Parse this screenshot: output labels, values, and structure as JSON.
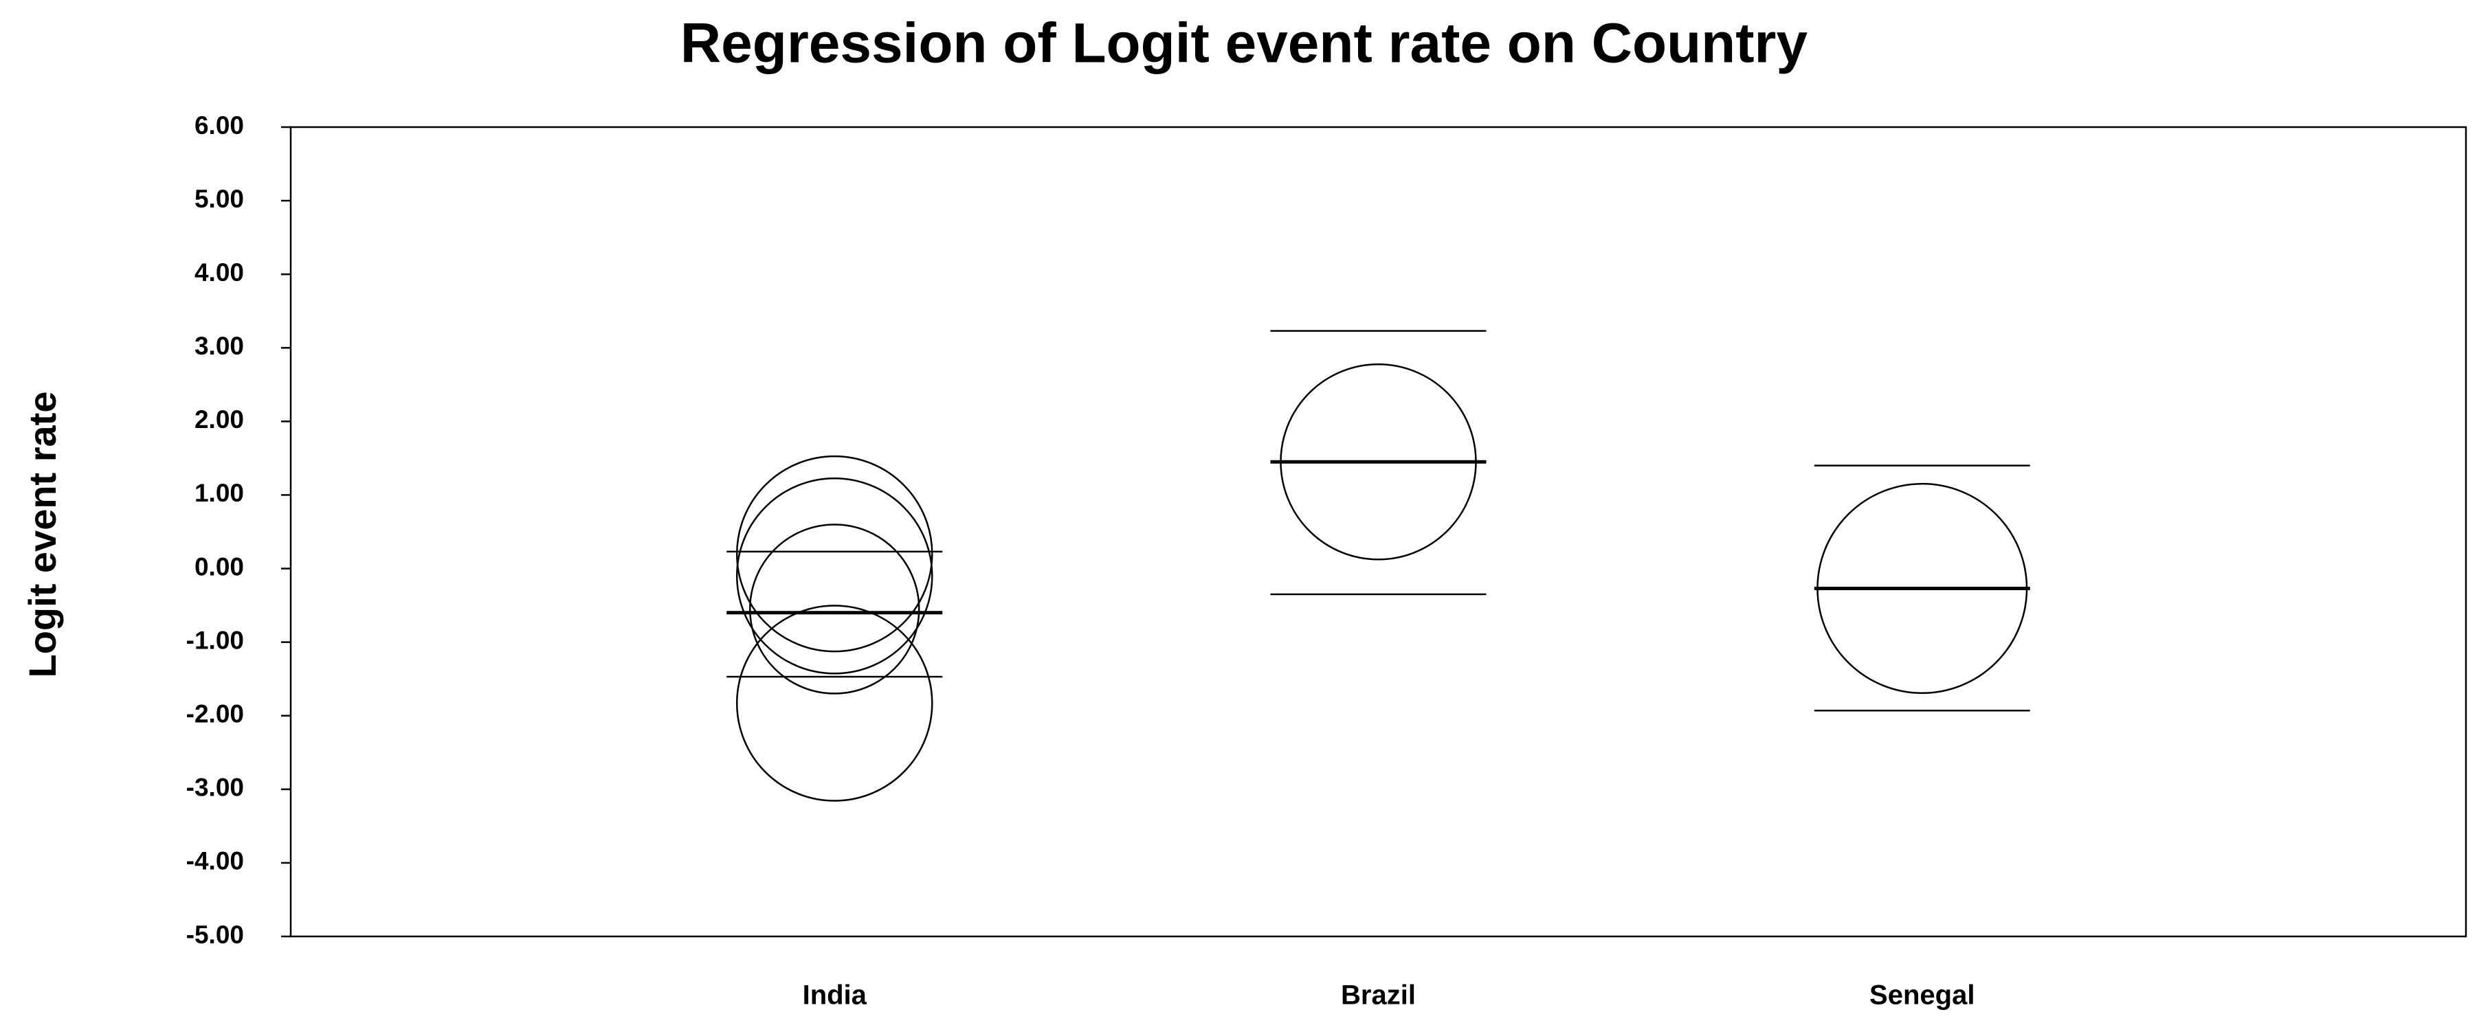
{
  "chart_data": {
    "type": "bubble",
    "title": "Regression of Logit event rate on Country",
    "y_label": "Logit event rate",
    "ylim": [
      -5,
      6
    ],
    "yticks": [
      {
        "value": 6,
        "label": "6.00"
      },
      {
        "value": 5,
        "label": "5.00"
      },
      {
        "value": 4,
        "label": "4.00"
      },
      {
        "value": 3,
        "label": "3.00"
      },
      {
        "value": 2,
        "label": "2.00"
      },
      {
        "value": 1,
        "label": "1.00"
      },
      {
        "value": 0,
        "label": "0.00"
      },
      {
        "value": -1,
        "label": "-1.00"
      },
      {
        "value": -2,
        "label": "-2.00"
      },
      {
        "value": -3,
        "label": "-3.00"
      },
      {
        "value": -4,
        "label": "-4.00"
      },
      {
        "value": -5,
        "label": "-5.00"
      }
    ],
    "groups": [
      {
        "label": "India",
        "values": [
          0.2,
          -0.1,
          -0.55,
          -1.83
        ],
        "sizes": [
          1.0,
          1.0,
          0.75,
          1.0
        ],
        "mean": -0.6,
        "upper": 0.23,
        "lower": -1.47
      },
      {
        "label": "Brazil",
        "values": [
          1.45
        ],
        "sizes": [
          1.0
        ],
        "mean": 1.45,
        "upper": 3.23,
        "lower": -0.35
      },
      {
        "label": "Senegal",
        "values": [
          -0.27
        ],
        "sizes": [
          1.15
        ],
        "mean": -0.27,
        "upper": 1.4,
        "lower": -1.93
      }
    ],
    "color": "#000000"
  }
}
